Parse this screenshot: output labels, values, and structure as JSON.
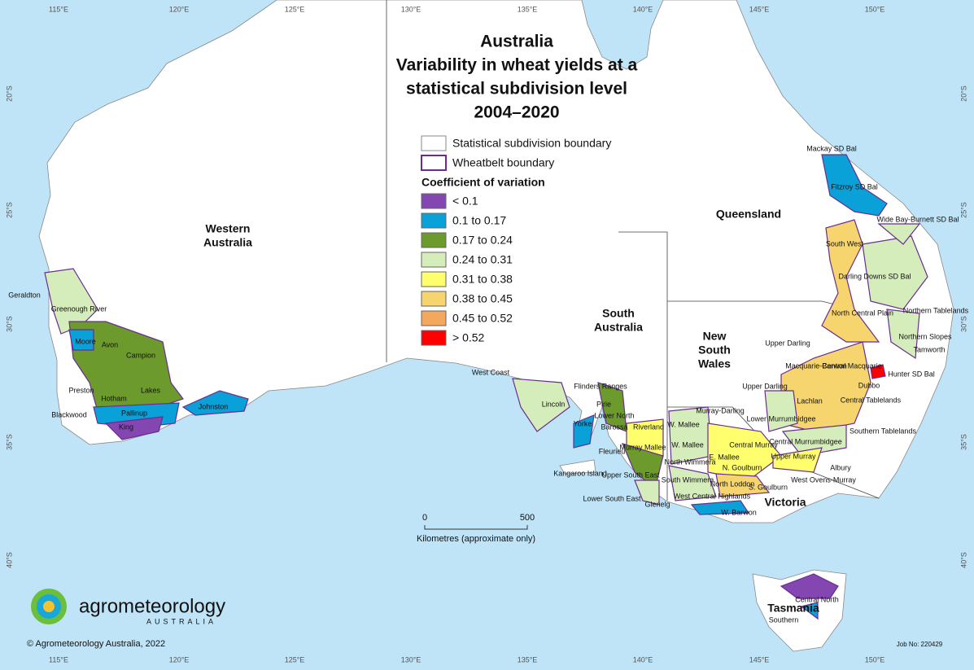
{
  "title": [
    "Australia",
    "Variability in wheat yields at a",
    "statistical subdivision level",
    "2004–2020"
  ],
  "lon_labels": [
    "115°E",
    "120°E",
    "125°E",
    "130°E",
    "135°E",
    "140°E",
    "145°E",
    "150°E"
  ],
  "lat_labels": [
    "20°S",
    "25°S",
    "30°S",
    "35°S",
    "40°S"
  ],
  "legend": {
    "boundaries": [
      "Statistical subdivision boundary",
      "Wheatbelt boundary"
    ],
    "heading": "Coefficient of variation",
    "classes": [
      {
        "label": "< 0.1",
        "color": "#8446b0"
      },
      {
        "label": "0.1 to 0.17",
        "color": "#0aa0d8"
      },
      {
        "label": "0.17 to 0.24",
        "color": "#6c9a2c"
      },
      {
        "label": "0.24 to 0.31",
        "color": "#d5edbb"
      },
      {
        "label": "0.31 to 0.38",
        "color": "#ffff6e"
      },
      {
        "label": "0.38 to 0.45",
        "color": "#f6d46e"
      },
      {
        "label": "0.45 to 0.52",
        "color": "#f4a85e"
      },
      {
        "label": "> 0.52",
        "color": "#ff0000"
      }
    ]
  },
  "states": [
    [
      "Western",
      "Australia"
    ],
    [
      "Queensland"
    ],
    [
      "South",
      "Australia"
    ],
    [
      "New",
      "South",
      "Wales"
    ],
    [
      "Victoria"
    ],
    [
      "Tasmania"
    ]
  ],
  "regions": [
    "Geraldton",
    "Greenough River",
    "Moore",
    "Avon",
    "Campion",
    "Preston",
    "Hotham",
    "Lakes",
    "Blackwood",
    "Pallinup",
    "King",
    "Johnston",
    "West Coast",
    "Lincoln",
    "Flinders Ranges",
    "Pirie",
    "Lower North",
    "Yorke",
    "Barossa",
    "Riverland",
    "Fleurieu",
    "Murray Mallee",
    "Kangaroo Island",
    "Upper South East",
    "Lower South East",
    "Glenelg",
    "W. Mallee",
    "Murray-Darling",
    "W. Mallee",
    "North Wimmera",
    "South Wimmera",
    "E. Mallee",
    "Central Murray",
    "N. Goulburn",
    "North Loddon",
    "S. Goulburn",
    "West Central Highlands",
    "W. Barwon",
    "Upper Murray",
    "Albury",
    "West Ovens-Murray",
    "Mackay SD Bal",
    "Fitzroy SD Bal",
    "Wide Bay-Burnett SD Bal",
    "South West",
    "Darling Downs SD Bal",
    "North Central Plain",
    "Northern Tablelands",
    "Northern Slopes",
    "Tamworth",
    "Upper Darling",
    "Central Macquarie",
    "Macquarie-Barwon",
    "Hunter SD Bal",
    "Dubbo",
    "Central Tablelands",
    "Upper Darling",
    "Lachlan",
    "Lower Murrumbidgee",
    "Southern Tablelands",
    "Central Murrumbidgee",
    "Central North",
    "Southern"
  ],
  "scale": {
    "start": "0",
    "end": "500",
    "caption": "Kilometres (approximate only)"
  },
  "logo": {
    "name": "agrometeorology",
    "sub": "AUSTRALIA"
  },
  "copyright": "© Agrometeorology Australia, 2022",
  "job": "Job No: 220429"
}
